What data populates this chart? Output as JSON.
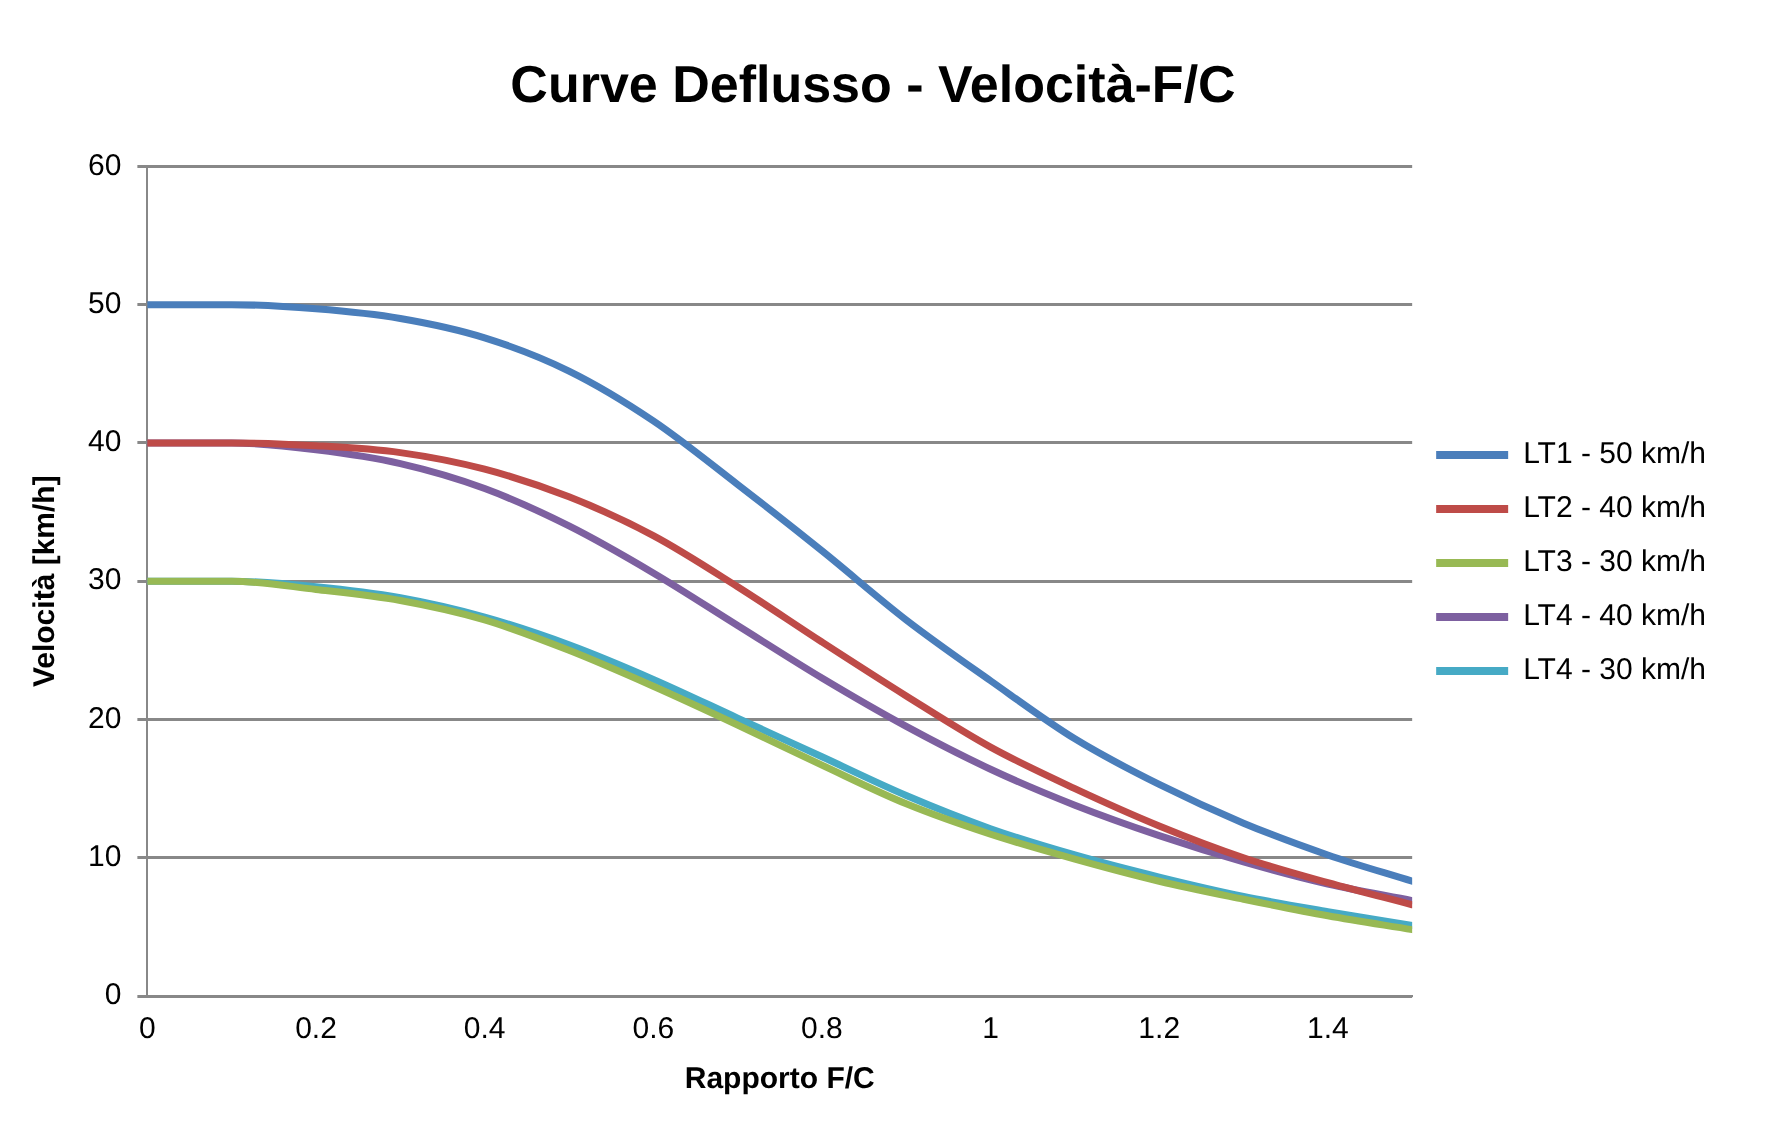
{
  "chart_data": {
    "type": "line",
    "title": "Curve Deflusso - Velocità-F/C",
    "xlabel": "Rapporto F/C",
    "ylabel": "Velocità [km/h]",
    "x": [
      0,
      0.1,
      0.2,
      0.3,
      0.4,
      0.5,
      0.6,
      0.7,
      0.8,
      0.9,
      1.0,
      1.1,
      1.2,
      1.3,
      1.4,
      1.5
    ],
    "xlim": [
      0,
      1.5
    ],
    "xticks": [
      0,
      0.2,
      0.4,
      0.6,
      0.8,
      1,
      1.2,
      1.4
    ],
    "ylim": [
      0,
      60
    ],
    "yticks": [
      0,
      10,
      20,
      30,
      40,
      50,
      60
    ],
    "grid": "y",
    "legend": "right",
    "marker": "none",
    "line_style": "solid",
    "series": [
      {
        "name": "LT1 - 50 km/h",
        "color": "#4a7ebb",
        "values": [
          50,
          50,
          49.7,
          49,
          47.6,
          45.2,
          41.6,
          37,
          32.2,
          27.2,
          22.8,
          18.6,
          15.3,
          12.5,
          10.2,
          8.3
        ]
      },
      {
        "name": "LT2 - 40 km/h",
        "color": "#be4b48",
        "values": [
          40,
          40,
          39.8,
          39.3,
          38.1,
          36.1,
          33.3,
          29.6,
          25.6,
          21.7,
          18,
          15,
          12.3,
          10,
          8.2,
          6.6
        ]
      },
      {
        "name": "LT3 - 30 km/h",
        "color": "#98b954",
        "values": [
          30,
          30,
          29.4,
          28.6,
          27.2,
          25,
          22.4,
          19.6,
          16.7,
          13.9,
          11.7,
          9.9,
          8.3,
          7,
          5.8,
          4.8
        ]
      },
      {
        "name": "LT4 - 40 km/h",
        "color": "#7d60a0",
        "values": [
          40,
          40,
          39.5,
          38.5,
          36.7,
          34,
          30.6,
          26.8,
          23,
          19.5,
          16.4,
          13.8,
          11.6,
          9.7,
          8.1,
          6.9
        ]
      },
      {
        "name": "LT4 - 30 km/h",
        "color": "#46aac5",
        "values": [
          30,
          30,
          29.6,
          28.8,
          27.4,
          25.4,
          22.9,
          20.1,
          17.3,
          14.5,
          12.1,
          10.2,
          8.6,
          7.2,
          6.1,
          5.1
        ]
      }
    ]
  }
}
